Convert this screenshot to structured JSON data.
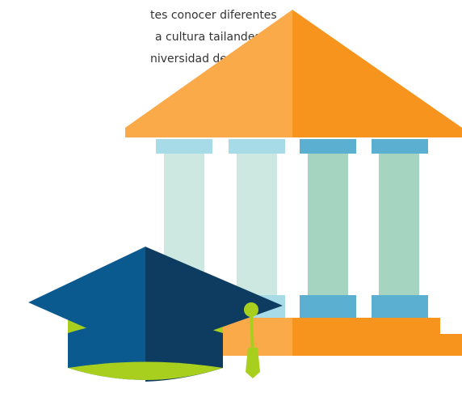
{
  "text": {
    "lines": [
      "tes conocer diferentes",
      "a cultura tailandesa.",
      "niversidad de Naresuan,"
    ]
  }
}
